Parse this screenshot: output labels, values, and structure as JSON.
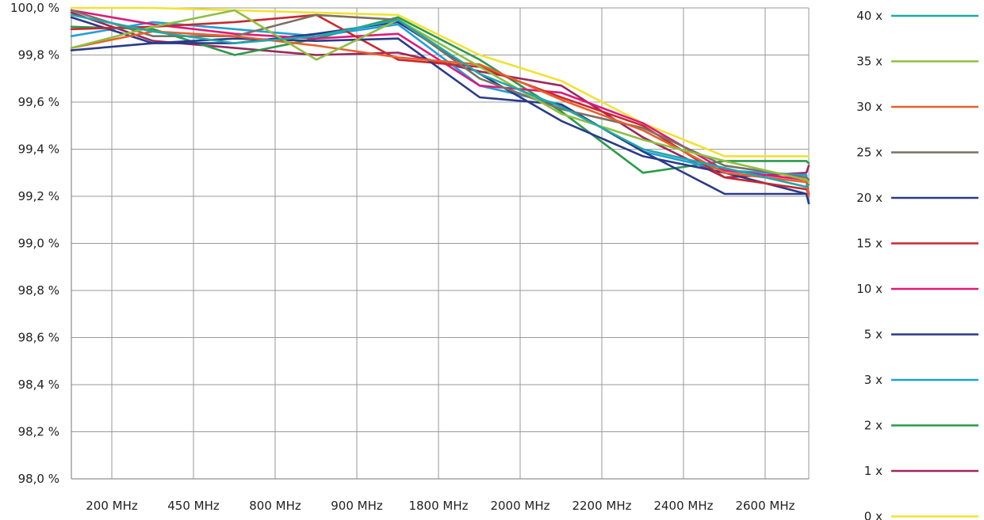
{
  "chart_data": {
    "type": "line",
    "title": "",
    "xlabel": "",
    "ylabel": "",
    "categories": [
      "",
      "200 MHz",
      "450 MHz",
      "800 MHz",
      "900 MHz",
      "1800 MHz",
      "2000 MHz",
      "2200 MHz",
      "2400 MHz",
      "2600 MHz",
      ""
    ],
    "x_tick_labels": [
      "200 MHz",
      "450 MHz",
      "800 MHz",
      "900 MHz",
      "1800 MHz",
      "2000 MHz",
      "2200 MHz",
      "2400 MHz",
      "2600 MHz"
    ],
    "y_tick_labels": [
      "100,0 %",
      "99,8 %",
      "99,6 %",
      "99,4 %",
      "99,2 %",
      "99,0 %",
      "98,8 %",
      "98,6 %",
      "98,4 %",
      "98,2 %",
      "98,0 %"
    ],
    "ylim": [
      98.0,
      100.0
    ],
    "y_ticks": [
      100.0,
      99.8,
      99.6,
      99.4,
      99.2,
      99.0,
      98.8,
      98.6,
      98.4,
      98.2,
      98.0
    ],
    "grid": true,
    "legend_position": "right",
    "series": [
      {
        "name": "40 x",
        "color": "#1fa9a9",
        "values": [
          99.97,
          99.9,
          99.85,
          99.88,
          99.95,
          99.72,
          99.58,
          99.4,
          99.32,
          99.24,
          99.25
        ]
      },
      {
        "name": "35 x",
        "color": "#8fbf3f",
        "values": [
          99.83,
          99.92,
          99.99,
          99.78,
          99.95,
          99.75,
          99.55,
          99.44,
          99.35,
          99.27,
          99.26
        ]
      },
      {
        "name": "30 x",
        "color": "#e8602c",
        "values": [
          99.83,
          99.9,
          99.88,
          99.84,
          99.79,
          99.76,
          99.61,
          99.48,
          99.3,
          99.26,
          99.2
        ]
      },
      {
        "name": "25 x",
        "color": "#7d7063",
        "values": [
          99.99,
          99.88,
          99.88,
          99.97,
          99.95,
          99.7,
          99.57,
          99.49,
          99.33,
          99.28,
          99.27
        ]
      },
      {
        "name": "20 x",
        "color": "#2b3a8a",
        "values": [
          99.82,
          99.85,
          99.87,
          99.86,
          99.87,
          99.62,
          99.59,
          99.39,
          99.21,
          99.21,
          99.17
        ]
      },
      {
        "name": "15 x",
        "color": "#c8292d",
        "values": [
          99.91,
          99.92,
          99.94,
          99.97,
          99.78,
          99.75,
          99.62,
          99.5,
          99.28,
          99.23,
          99.21
        ]
      },
      {
        "name": "10 x",
        "color": "#e0187a",
        "values": [
          99.99,
          99.93,
          99.89,
          99.87,
          99.89,
          99.67,
          99.64,
          99.51,
          99.31,
          99.27,
          99.21
        ]
      },
      {
        "name": "5 x",
        "color": "#2b3a8a",
        "values": [
          99.96,
          99.85,
          99.85,
          99.89,
          99.94,
          99.72,
          99.52,
          99.37,
          99.3,
          99.21,
          99.2
        ]
      },
      {
        "name": "3 x",
        "color": "#1fa0d8",
        "values": [
          99.88,
          99.94,
          99.91,
          99.88,
          99.93,
          99.67,
          99.59,
          99.39,
          99.31,
          99.29,
          99.17
        ]
      },
      {
        "name": "2 x",
        "color": "#2a9a4a",
        "values": [
          99.92,
          99.91,
          99.8,
          99.87,
          99.96,
          99.78,
          99.56,
          99.3,
          99.35,
          99.35,
          99.34
        ]
      },
      {
        "name": "1 x",
        "color": "#9c2660",
        "values": [
          99.98,
          99.86,
          99.83,
          99.8,
          99.81,
          99.73,
          99.67,
          99.45,
          99.28,
          99.3,
          99.33
        ]
      },
      {
        "name": "0 x",
        "color": "#f2e232",
        "values": [
          100.0,
          100.0,
          99.99,
          99.98,
          99.97,
          99.8,
          99.69,
          99.51,
          99.37,
          99.37,
          99.37
        ]
      }
    ]
  }
}
